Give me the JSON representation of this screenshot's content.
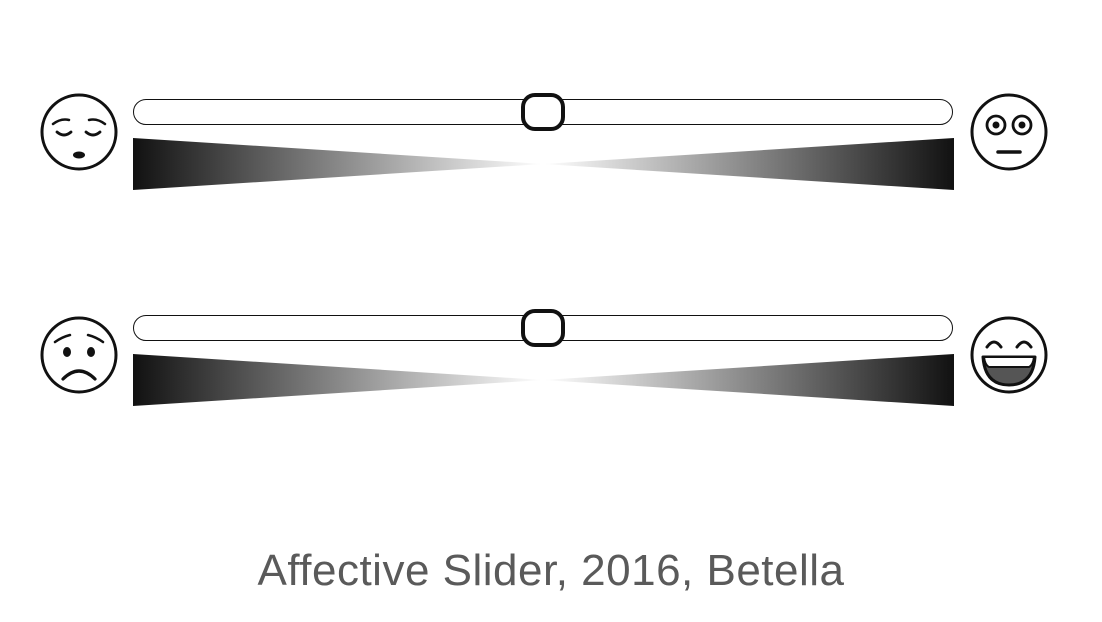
{
  "caption": "Affective Slider, 2016, Betella",
  "sliders": [
    {
      "left_icon": "sleepy-face-icon",
      "right_icon": "wide-eyed-face-icon",
      "value": 0.5
    },
    {
      "left_icon": "sad-face-icon",
      "right_icon": "grinning-face-icon",
      "value": 0.5
    }
  ],
  "colors": {
    "stroke": "#111111",
    "wedge_dark": "#111111",
    "wedge_light": "#ffffff",
    "caption": "#5a5a5a"
  }
}
